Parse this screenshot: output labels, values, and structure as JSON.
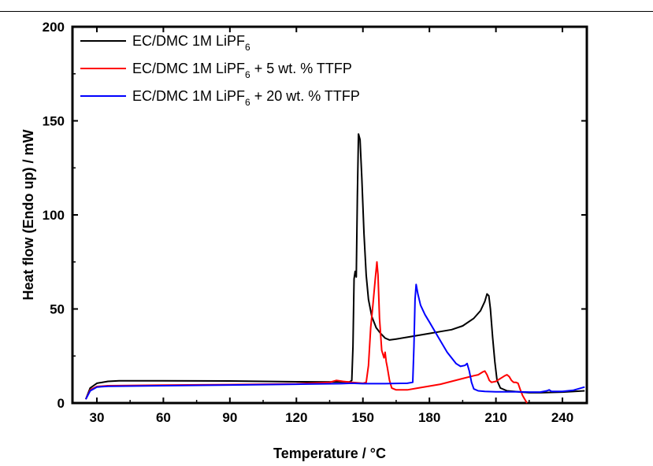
{
  "chart_data": {
    "type": "line",
    "xlabel": "Temperature / °C",
    "ylabel": "Heat flow (Endo up) / mW",
    "xlim": [
      19,
      251
    ],
    "ylim": [
      0,
      200
    ],
    "xticks": [
      30,
      60,
      90,
      120,
      150,
      180,
      210,
      240
    ],
    "yticks": [
      0,
      50,
      100,
      150,
      200
    ],
    "grid": false,
    "legend_position": "top-left",
    "series": [
      {
        "name": "EC/DMC 1M LiPF",
        "name_sub": "6",
        "name_suffix": "",
        "color": "#000000",
        "points": [
          [
            25,
            2
          ],
          [
            27,
            8
          ],
          [
            30,
            10.5
          ],
          [
            35,
            11.5
          ],
          [
            40,
            11.8
          ],
          [
            60,
            11.8
          ],
          [
            90,
            11.7
          ],
          [
            120,
            11.3
          ],
          [
            140,
            11.2
          ],
          [
            144,
            11.2
          ],
          [
            145,
            12
          ],
          [
            145.5,
            30
          ],
          [
            146,
            66
          ],
          [
            146.5,
            70
          ],
          [
            147,
            67
          ],
          [
            147.5,
            110
          ],
          [
            148,
            143
          ],
          [
            148.7,
            140
          ],
          [
            149.5,
            120
          ],
          [
            150.5,
            90
          ],
          [
            151.5,
            68
          ],
          [
            152.5,
            55
          ],
          [
            154,
            46
          ],
          [
            156,
            40
          ],
          [
            158,
            37
          ],
          [
            160,
            34.5
          ],
          [
            162,
            33.5
          ],
          [
            165,
            34
          ],
          [
            170,
            35
          ],
          [
            175,
            36
          ],
          [
            180,
            37
          ],
          [
            185,
            38
          ],
          [
            190,
            39
          ],
          [
            195,
            41
          ],
          [
            200,
            45
          ],
          [
            203,
            49
          ],
          [
            205,
            54
          ],
          [
            206,
            58
          ],
          [
            206.8,
            57
          ],
          [
            207.5,
            50
          ],
          [
            208.5,
            35
          ],
          [
            209.5,
            22
          ],
          [
            210.5,
            12
          ],
          [
            212,
            8
          ],
          [
            215,
            6.5
          ],
          [
            220,
            6
          ],
          [
            225,
            5.5
          ],
          [
            230,
            5.5
          ],
          [
            240,
            5.8
          ],
          [
            250,
            6.5
          ]
        ]
      },
      {
        "name": "EC/DMC 1M LiPF",
        "name_sub": "6",
        "name_suffix": " + 5 wt. % TTFP",
        "color": "#ff0000",
        "points": [
          [
            25,
            2
          ],
          [
            27,
            7
          ],
          [
            30,
            8.8
          ],
          [
            35,
            9.2
          ],
          [
            60,
            9.5
          ],
          [
            90,
            9.8
          ],
          [
            120,
            10.2
          ],
          [
            135,
            11
          ],
          [
            138,
            12
          ],
          [
            141,
            11.5
          ],
          [
            145,
            11
          ],
          [
            150,
            10.5
          ],
          [
            151.5,
            11
          ],
          [
            152.5,
            20
          ],
          [
            153.5,
            40
          ],
          [
            154.5,
            52
          ],
          [
            155.5,
            65
          ],
          [
            156.3,
            75
          ],
          [
            156.8,
            68
          ],
          [
            157.5,
            45
          ],
          [
            158.5,
            28
          ],
          [
            159.5,
            24
          ],
          [
            160,
            27
          ],
          [
            160.5,
            22
          ],
          [
            161,
            19
          ],
          [
            162,
            12
          ],
          [
            163,
            8
          ],
          [
            165,
            7
          ],
          [
            170,
            7
          ],
          [
            175,
            8
          ],
          [
            180,
            9
          ],
          [
            185,
            10
          ],
          [
            190,
            11.5
          ],
          [
            195,
            13
          ],
          [
            200,
            14.5
          ],
          [
            202,
            15
          ],
          [
            204,
            16.5
          ],
          [
            205,
            17
          ],
          [
            206,
            15
          ],
          [
            207,
            12
          ],
          [
            208,
            11
          ],
          [
            210,
            11.5
          ],
          [
            212,
            13
          ],
          [
            214,
            14.5
          ],
          [
            215,
            15
          ],
          [
            216,
            14
          ],
          [
            217,
            12
          ],
          [
            218,
            11
          ],
          [
            219,
            11
          ],
          [
            220,
            10.5
          ],
          [
            221,
            7
          ],
          [
            222,
            4
          ],
          [
            223,
            2
          ],
          [
            224,
            0
          ]
        ]
      },
      {
        "name": "EC/DMC 1M LiPF",
        "name_sub": "6",
        "name_suffix": " + 20 wt. % TTFP",
        "color": "#0000ff",
        "points": [
          [
            25,
            2
          ],
          [
            27,
            6.5
          ],
          [
            30,
            8.5
          ],
          [
            35,
            8.9
          ],
          [
            60,
            9.2
          ],
          [
            90,
            9.6
          ],
          [
            120,
            10
          ],
          [
            140,
            10.3
          ],
          [
            145,
            10.5
          ],
          [
            150,
            10.3
          ],
          [
            160,
            10.3
          ],
          [
            170,
            10.5
          ],
          [
            172.5,
            11
          ],
          [
            173,
            30
          ],
          [
            173.5,
            55
          ],
          [
            174,
            63
          ],
          [
            174.8,
            58
          ],
          [
            176,
            52
          ],
          [
            178,
            47
          ],
          [
            180,
            43
          ],
          [
            182,
            39
          ],
          [
            184,
            35
          ],
          [
            186,
            31
          ],
          [
            188,
            27
          ],
          [
            190,
            24
          ],
          [
            192,
            21
          ],
          [
            194,
            19.5
          ],
          [
            196,
            20
          ],
          [
            197,
            21
          ],
          [
            198,
            17
          ],
          [
            199,
            11
          ],
          [
            200,
            7.5
          ],
          [
            202,
            6.5
          ],
          [
            205,
            6.2
          ],
          [
            210,
            6
          ],
          [
            215,
            6
          ],
          [
            220,
            6
          ],
          [
            225,
            5.8
          ],
          [
            230,
            5.8
          ],
          [
            233,
            6.5
          ],
          [
            234,
            7
          ],
          [
            235,
            6.2
          ],
          [
            240,
            6.2
          ],
          [
            245,
            6.8
          ],
          [
            250,
            8.5
          ]
        ]
      }
    ]
  }
}
